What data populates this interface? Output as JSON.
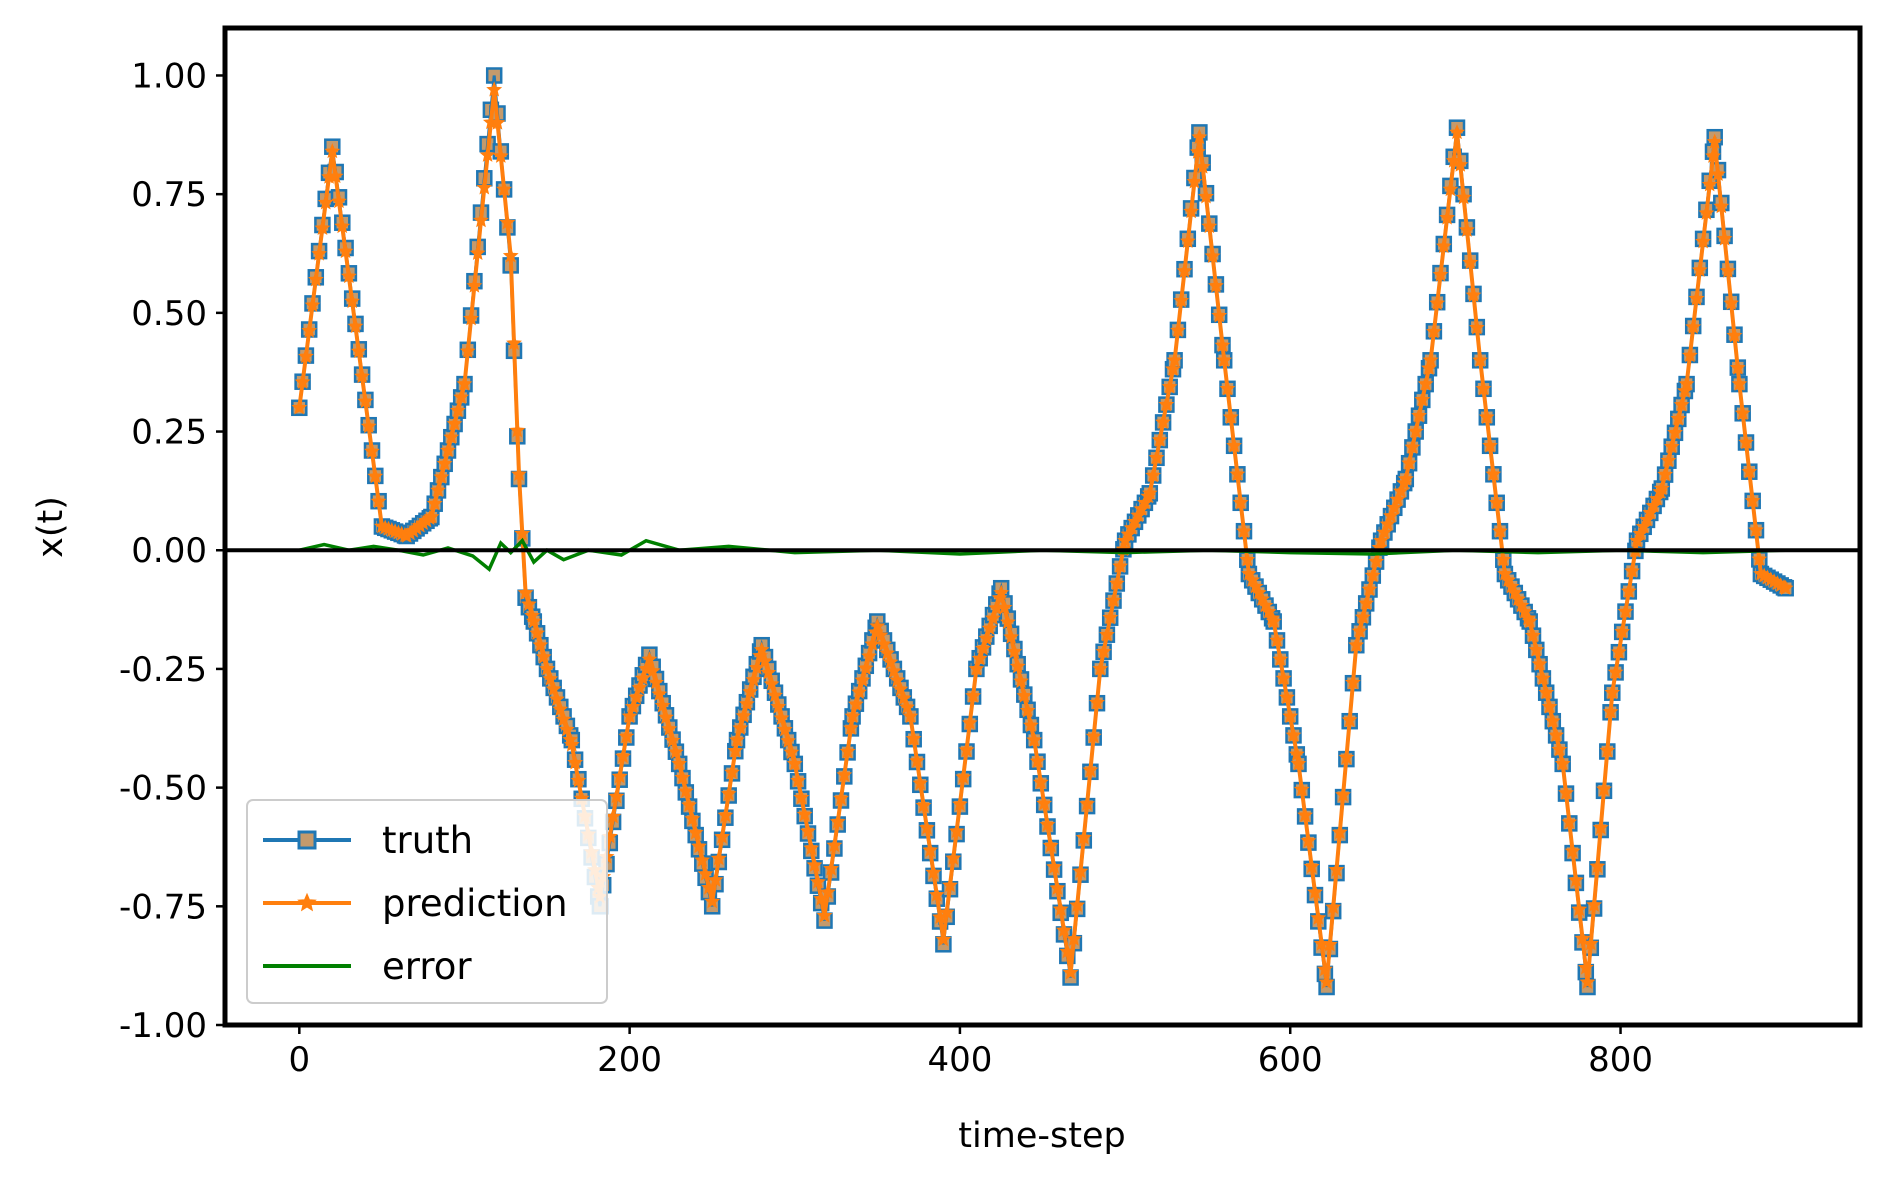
{
  "chart_data": {
    "type": "line",
    "title": "",
    "xlabel": "time-step",
    "ylabel": "x(t)",
    "xlim": [
      -45,
      945
    ],
    "ylim": [
      -1.0,
      1.1
    ],
    "xticks": [
      0,
      200,
      400,
      600,
      800
    ],
    "xtick_labels": [
      "0",
      "200",
      "400",
      "600",
      "800"
    ],
    "yticks": [
      -1.0,
      -0.75,
      -0.5,
      -0.25,
      0.0,
      0.25,
      0.5,
      0.75,
      1.0
    ],
    "ytick_labels": [
      "-1.00",
      "-0.75",
      "-0.50",
      "-0.25",
      "0.00",
      "0.25",
      "0.50",
      "0.75",
      "1.00"
    ],
    "grid": false,
    "legend_position": "lower-left",
    "zero_line": true,
    "colors": {
      "truth": "#1f77b4",
      "prediction": "#ff7f0e",
      "error": "#008000",
      "zero_line": "#000000"
    },
    "series": [
      {
        "name": "truth",
        "marker": "square",
        "x": [
          0,
          20,
          50,
          65,
          80,
          100,
          118,
          128,
          133,
          137,
          142,
          150,
          165,
          182,
          200,
          212,
          230,
          250,
          265,
          280,
          300,
          318,
          335,
          350,
          370,
          390,
          410,
          425,
          445,
          467,
          485,
          500,
          515,
          530,
          545,
          560,
          575,
          590,
          605,
          622,
          640,
          655,
          670,
          685,
          701,
          715,
          730,
          745,
          765,
          780,
          795,
          810,
          825,
          840,
          857,
          872,
          885,
          900
        ],
        "y": [
          0.3,
          0.85,
          0.05,
          0.03,
          0.07,
          0.35,
          1.0,
          0.6,
          0.15,
          -0.1,
          -0.15,
          -0.25,
          -0.4,
          -0.75,
          -0.35,
          -0.22,
          -0.45,
          -0.75,
          -0.4,
          -0.2,
          -0.45,
          -0.78,
          -0.35,
          -0.15,
          -0.35,
          -0.83,
          -0.25,
          -0.08,
          -0.4,
          -0.9,
          -0.25,
          0.02,
          0.12,
          0.4,
          0.88,
          0.4,
          -0.05,
          -0.15,
          -0.45,
          -0.92,
          -0.2,
          0.02,
          0.15,
          0.4,
          0.89,
          0.4,
          -0.05,
          -0.15,
          -0.45,
          -0.92,
          -0.3,
          0.02,
          0.13,
          0.35,
          0.87,
          0.35,
          -0.05,
          -0.08
        ]
      },
      {
        "name": "prediction",
        "marker": "star",
        "x": [
          0,
          20,
          50,
          65,
          80,
          100,
          118,
          128,
          133,
          137,
          142,
          150,
          165,
          182,
          200,
          212,
          230,
          250,
          265,
          280,
          300,
          318,
          335,
          350,
          370,
          390,
          410,
          425,
          445,
          467,
          485,
          500,
          515,
          530,
          545,
          560,
          575,
          590,
          605,
          622,
          640,
          655,
          670,
          685,
          701,
          715,
          730,
          745,
          765,
          780,
          795,
          810,
          825,
          840,
          857,
          872,
          885,
          900
        ],
        "y": [
          0.3,
          0.84,
          0.05,
          0.03,
          0.07,
          0.35,
          0.97,
          0.62,
          0.16,
          -0.09,
          -0.15,
          -0.25,
          -0.41,
          -0.73,
          -0.35,
          -0.23,
          -0.45,
          -0.74,
          -0.4,
          -0.21,
          -0.45,
          -0.77,
          -0.35,
          -0.16,
          -0.35,
          -0.82,
          -0.25,
          -0.09,
          -0.4,
          -0.89,
          -0.25,
          0.02,
          0.12,
          0.4,
          0.87,
          0.4,
          -0.05,
          -0.15,
          -0.45,
          -0.91,
          -0.2,
          0.02,
          0.15,
          0.4,
          0.88,
          0.4,
          -0.05,
          -0.15,
          -0.45,
          -0.91,
          -0.3,
          0.02,
          0.13,
          0.35,
          0.86,
          0.35,
          -0.05,
          -0.08
        ]
      },
      {
        "name": "error",
        "marker": "none",
        "x": [
          0,
          15,
          30,
          45,
          60,
          75,
          90,
          105,
          115,
          122,
          128,
          135,
          142,
          150,
          160,
          175,
          195,
          210,
          230,
          260,
          300,
          350,
          400,
          450,
          500,
          550,
          600,
          650,
          700,
          750,
          800,
          850,
          900
        ],
        "y": [
          0.0,
          0.012,
          0.0,
          0.008,
          0.0,
          -0.01,
          0.005,
          -0.012,
          -0.04,
          0.015,
          -0.005,
          0.02,
          -0.025,
          0.0,
          -0.02,
          0.0,
          -0.01,
          0.02,
          0.0,
          0.008,
          -0.005,
          0.0,
          -0.008,
          0.0,
          -0.005,
          0.0,
          -0.005,
          -0.008,
          0.0,
          -0.005,
          0.0,
          -0.005,
          0.0
        ]
      }
    ]
  }
}
